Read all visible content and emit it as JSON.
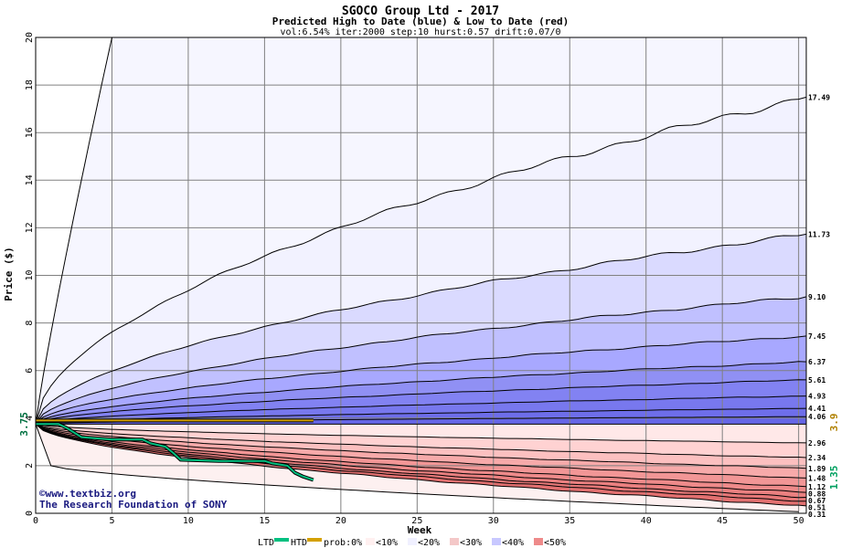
{
  "chart_data": {
    "type": "area",
    "title": "SGOCO Group Ltd - 2017",
    "subtitle": "Predicted High to Date (blue) &  Low to Date (red)",
    "params": "vol:6.54% iter:2000 step:10 hurst:0.57 drift:0.07/0",
    "xlabel": "Week",
    "ylabel": "Price ($)",
    "xlim": [
      0,
      50.5
    ],
    "ylim": [
      0,
      20
    ],
    "xticks": [
      "0",
      "5",
      "10",
      "15",
      "20",
      "25",
      "30",
      "35",
      "40",
      "45",
      "50"
    ],
    "yticks": [
      "0",
      "2",
      "4",
      "6",
      "8",
      "10",
      "12",
      "14",
      "16",
      "18",
      "20"
    ],
    "start_price": 3.75,
    "start_label": "3.75",
    "high_label": "3.9",
    "low_label": "1.35",
    "grid": true,
    "high_band_values": [
      17.49,
      11.73,
      9.1,
      7.45,
      6.37,
      5.61,
      4.93,
      4.41,
      4.06
    ],
    "high_band_labels": [
      "17.49",
      "11.73",
      "9.10",
      "7.45",
      "6.37",
      "5.61",
      "4.93",
      "4.41",
      "4.06"
    ],
    "low_band_values": [
      2.96,
      2.34,
      1.89,
      1.48,
      1.12,
      0.88,
      0.67,
      0.51,
      0.31
    ],
    "low_band_labels": [
      "2.96",
      "2.34",
      "1.89",
      "1.48",
      "1.12",
      "0.88",
      "0.67",
      "0.51",
      "0.31"
    ],
    "extreme_high_week": 5,
    "extreme_low_at_week_1": 2.0,
    "extreme_low_end": 0.05,
    "ltd_series": {
      "name": "LTD",
      "color": "#00c080",
      "x": [
        0,
        1.5,
        2,
        3,
        5,
        7,
        7.5,
        8.5,
        9,
        9.5,
        12,
        14,
        15,
        15.5,
        16.5,
        17,
        17.5,
        18.2
      ],
      "y": [
        3.75,
        3.75,
        3.6,
        3.2,
        3.1,
        3.1,
        2.95,
        2.8,
        2.55,
        2.25,
        2.2,
        2.2,
        2.2,
        2.1,
        2.0,
        1.7,
        1.55,
        1.4
      ]
    },
    "htd_series": {
      "name": "HTD",
      "color": "#d4a000",
      "x": [
        0,
        18.2
      ],
      "y": [
        3.9,
        3.9
      ]
    },
    "colors": {
      "blue_bands": [
        "#f2f2ff",
        "#dadaff",
        "#c0c0ff",
        "#a8a8ff",
        "#9090f4",
        "#8282f2",
        "#7878ee",
        "#6e6eea",
        "#6666e6"
      ],
      "red_bands": [
        "#ffe8e8",
        "#ffd2d2",
        "#fcc0c0",
        "#f7aaaa",
        "#f29696",
        "#ee8a8a",
        "#ea8080",
        "#e67878",
        "#e27070"
      ]
    }
  },
  "credit": {
    "line1": "©www.textbiz.org",
    "line2": "The Research Foundation of SONY"
  },
  "legend": {
    "ltd": "LTD",
    "htd": "HTD",
    "prob_items": [
      "prob:0%",
      "<10%",
      "<20%",
      "<30%",
      "<40%",
      "<50%"
    ],
    "prob_colors": [
      "#ffffff",
      "#fff0f0",
      "#f0f0ff",
      "#f4c8c8",
      "#c8c8ff",
      "#ee8a8a",
      "#8080f0"
    ]
  }
}
